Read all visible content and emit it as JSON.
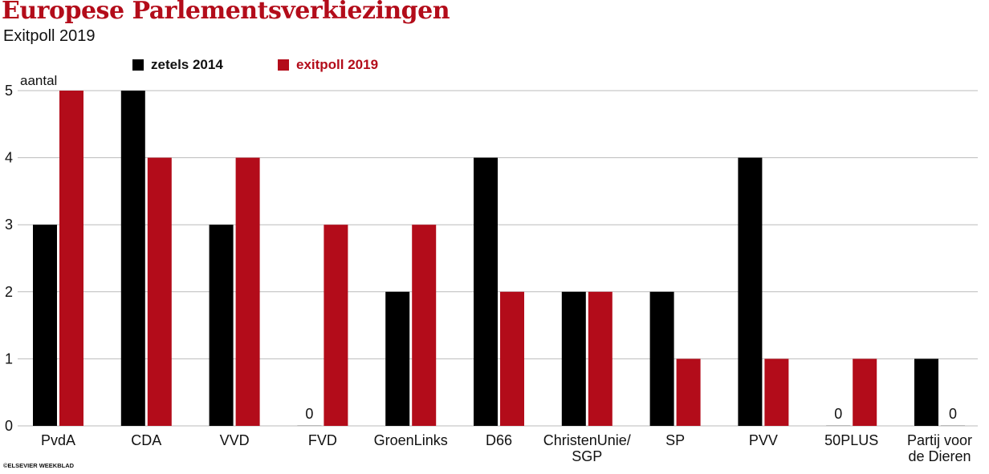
{
  "title": "Europese Parlementsverkiezingen",
  "subtitle": "Exitpoll 2019",
  "credit": "©ELSEVIER WEEKBLAD",
  "colors": {
    "series_2014": "#000000",
    "series_2019": "#b30c1a",
    "grid": "#bbbbbb",
    "text": "#111111"
  },
  "chart_data": {
    "type": "bar",
    "ylabel": "aantal",
    "ylim": [
      0,
      5
    ],
    "yticks": [
      "0",
      "1",
      "2",
      "3",
      "4",
      "5"
    ],
    "grid": true,
    "legend_position": "top",
    "categories": [
      [
        "PvdA"
      ],
      [
        "CDA"
      ],
      [
        "VVD"
      ],
      [
        "FVD"
      ],
      [
        "GroenLinks"
      ],
      [
        "D66"
      ],
      [
        "ChristenUnie/",
        "SGP"
      ],
      [
        "SP"
      ],
      [
        "PVV"
      ],
      [
        "50PLUS"
      ],
      [
        "Partij voor",
        "de Dieren"
      ]
    ],
    "series": [
      {
        "name": "zetels 2014",
        "color": "#000000",
        "values": [
          3,
          5,
          3,
          0,
          2,
          4,
          2,
          2,
          4,
          0,
          1
        ]
      },
      {
        "name": "exitpoll 2019",
        "color": "#b30c1a",
        "values": [
          5,
          4,
          4,
          3,
          3,
          2,
          2,
          1,
          1,
          1,
          0
        ]
      }
    ],
    "zero_value_label": "0"
  }
}
